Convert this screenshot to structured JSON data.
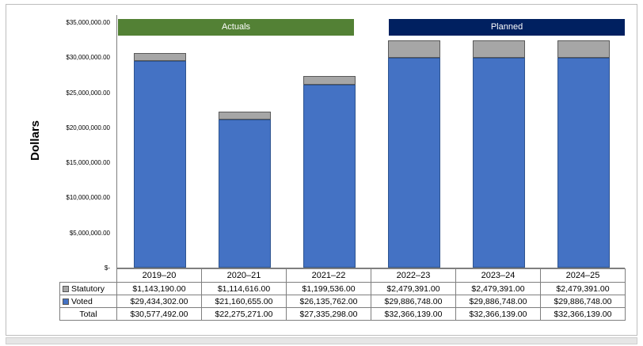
{
  "chart_data": {
    "type": "bar",
    "stacked": true,
    "title": "",
    "ylabel": "Dollars",
    "xlabel": "",
    "ylim": [
      0,
      35000000
    ],
    "grid": false,
    "legend_position": "table-left",
    "categories": [
      "2019–20",
      "2020–21",
      "2021–22",
      "2022–23",
      "2023–24",
      "2024–25"
    ],
    "series": [
      {
        "name": "Statutory",
        "color": "#a6a6a6",
        "border_color": "#595959",
        "values": [
          1143190,
          1114616,
          1199536,
          2479391,
          2479391,
          2479391
        ]
      },
      {
        "name": "Voted",
        "color": "#4472c4",
        "border_color": "#2e548f",
        "values": [
          29434302,
          21160655,
          26135762,
          29886748,
          29886748,
          29886748
        ]
      }
    ],
    "y_ticks": [
      {
        "label": "$35,000,000.00",
        "value": 35000000
      },
      {
        "label": "$30,000,000.00",
        "value": 30000000
      },
      {
        "label": "$25,000,000.00",
        "value": 25000000
      },
      {
        "label": "$20,000,000.00",
        "value": 20000000
      },
      {
        "label": "$15,000,000.00",
        "value": 15000000
      },
      {
        "label": "$10,000,000.00",
        "value": 10000000
      },
      {
        "label": "$5,000,000.00",
        "value": 5000000
      },
      {
        "label": "$-",
        "value": 0
      }
    ],
    "banners": [
      {
        "label": "Actuals",
        "color": "#538135",
        "span": [
          0,
          2
        ]
      },
      {
        "label": "Planned",
        "color": "#002060",
        "span": [
          3,
          5
        ]
      }
    ],
    "table": {
      "rows": [
        {
          "label": "Statutory",
          "legend_color": "#a6a6a6",
          "values": [
            "$1,143,190.00",
            "$1,114,616.00",
            "$1,199,536.00",
            "$2,479,391.00",
            "$2,479,391.00",
            "$2,479,391.00"
          ]
        },
        {
          "label": "Voted",
          "legend_color": "#4472c4",
          "values": [
            "$29,434,302.00",
            "$21,160,655.00",
            "$26,135,762.00",
            "$29,886,748.00",
            "$29,886,748.00",
            "$29,886,748.00"
          ]
        },
        {
          "label": "Total",
          "legend_color": null,
          "values": [
            "$30,577,492.00",
            "$22,275,271.00",
            "$27,335,298.00",
            "$32,366,139.00",
            "$32,366,139.00",
            "$32,366,139.00"
          ]
        }
      ]
    }
  }
}
